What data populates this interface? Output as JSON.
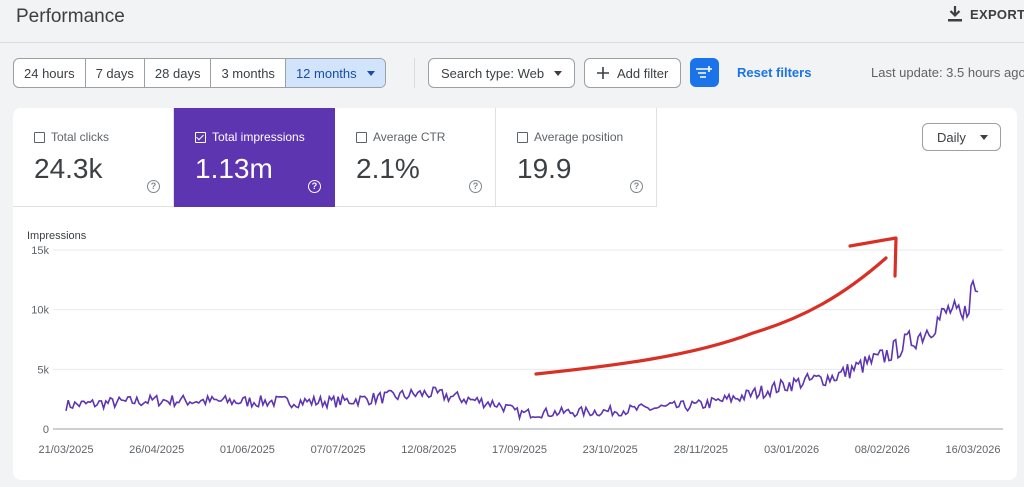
{
  "header": {
    "title": "Performance",
    "export_label": "EXPORT"
  },
  "toolbar": {
    "ranges": [
      "24 hours",
      "7 days",
      "28 days",
      "3 months",
      "12 months"
    ],
    "active_range": "12 months",
    "search_type": "Search type: Web",
    "add_filter": "Add filter",
    "reset_filters": "Reset filters",
    "last_update": "Last update: 3.5 hours ago"
  },
  "metrics": [
    {
      "label": "Total clicks",
      "value": "24.3k",
      "checked": false
    },
    {
      "label": "Total impressions",
      "value": "1.13m",
      "checked": true
    },
    {
      "label": "Average CTR",
      "value": "2.1%",
      "checked": false
    },
    {
      "label": "Average position",
      "value": "19.9",
      "checked": false
    }
  ],
  "granularity": "Daily",
  "colors": {
    "accent": "#5e35b1",
    "primary": "#1a73e8",
    "annotation": "#d93025"
  },
  "chart_data": {
    "type": "line",
    "ylabel": "Impressions",
    "yticks": [
      "15k",
      "10k",
      "5k",
      "0"
    ],
    "ylim": [
      0,
      15000
    ],
    "xticks": [
      "21/03/2025",
      "26/04/2025",
      "01/06/2025",
      "07/07/2025",
      "12/08/2025",
      "17/09/2025",
      "23/10/2025",
      "28/11/2025",
      "03/01/2026",
      "08/02/2026",
      "16/03/2026"
    ],
    "grid": true,
    "series": [
      {
        "points": [
          [
            "21/03/2025",
            2000
          ],
          [
            "26/04/2025",
            2400
          ],
          [
            "01/06/2025",
            2300
          ],
          [
            "07/07/2025",
            2300
          ],
          [
            "12/08/2025",
            3000
          ],
          [
            "08/09/2025",
            2100
          ],
          [
            "17/09/2025",
            1300
          ],
          [
            "23/10/2025",
            1500
          ],
          [
            "28/11/2025",
            2000
          ],
          [
            "16/12/2025",
            2800
          ],
          [
            "03/01/2026",
            3800
          ],
          [
            "20/01/2026",
            4400
          ],
          [
            "08/02/2026",
            6000
          ],
          [
            "24/02/2026",
            8000
          ],
          [
            "07/03/2026",
            10000
          ],
          [
            "12/03/2026",
            9000
          ],
          [
            "16/03/2026",
            12000
          ],
          [
            "18/03/2026",
            11500
          ]
        ]
      }
    ],
    "annotation": {
      "type": "hand-drawn-upward-arrow",
      "color": "#d93025"
    }
  }
}
